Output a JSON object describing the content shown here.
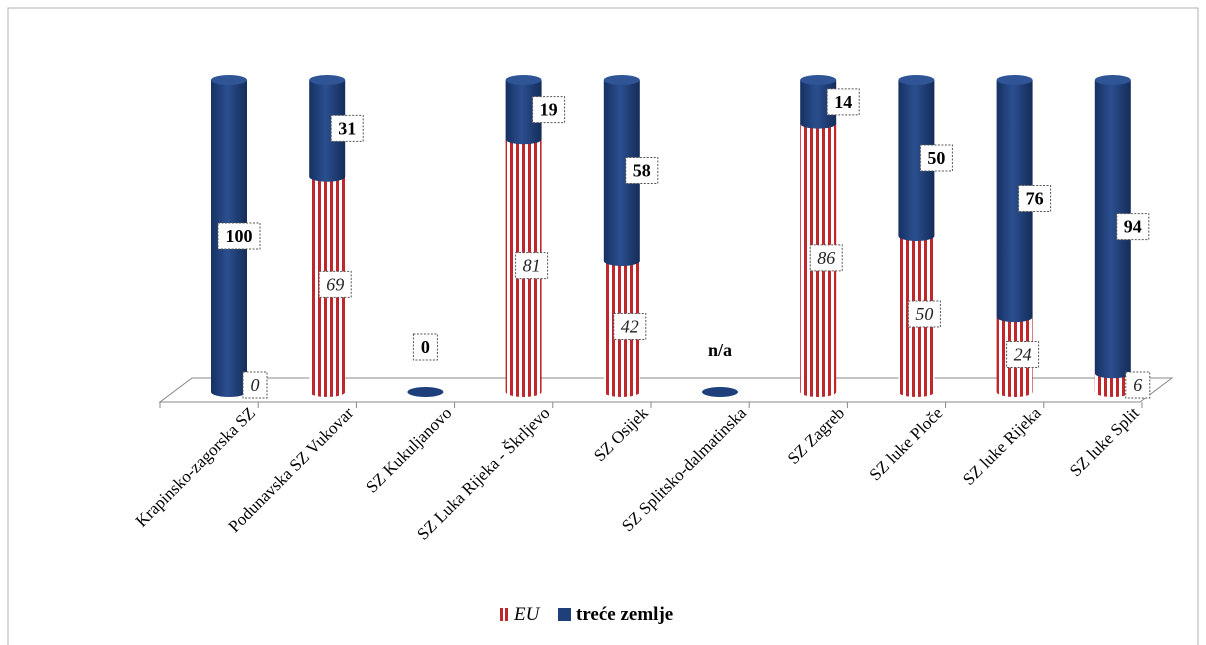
{
  "chart_data": {
    "type": "bar",
    "stacked": true,
    "shape": "cylinder-3d",
    "categories": [
      "Krapinsko-zagorska SZ",
      "Podunavska SZ Vukovar",
      "SZ Kukuljanovo",
      "SZ Luka Rijeka - Škrljevo",
      "SZ Osijek",
      "SZ Splitsko-dalmatinska",
      "SZ Zagreb",
      "SZ luke Ploče",
      "SZ luke Rijeka",
      "SZ luke Split"
    ],
    "series": [
      {
        "name": "EU",
        "values": [
          0,
          69,
          0,
          81,
          42,
          null,
          86,
          50,
          24,
          6
        ],
        "color": "#c0272d",
        "pattern": "vertical-stripes"
      },
      {
        "name": "treće zemlje",
        "values": [
          100,
          31,
          0,
          19,
          58,
          null,
          14,
          50,
          76,
          94
        ],
        "color": "#1f3f7a"
      }
    ],
    "special_labels": {
      "2": "0",
      "5": "n/a"
    },
    "ylim": [
      0,
      100
    ],
    "legend_position": "bottom",
    "grid": false
  }
}
